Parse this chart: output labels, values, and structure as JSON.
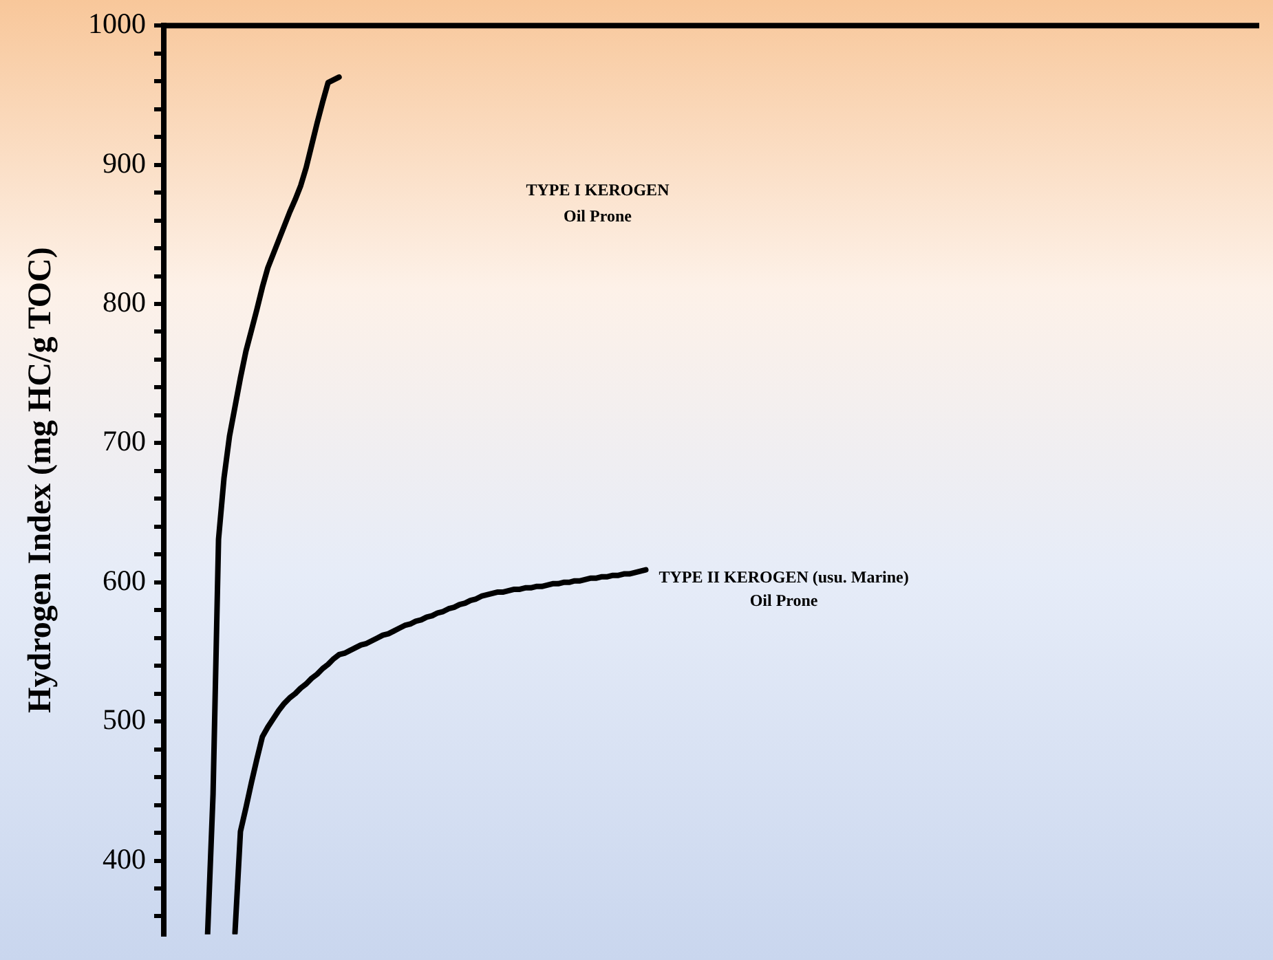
{
  "chart_data": {
    "type": "line",
    "ylabel": "Hydrogen Index (mg HC/g TOC)",
    "categories": [
      null,
      null,
      null,
      null,
      null,
      null,
      null,
      null,
      null,
      null,
      null,
      null,
      null,
      null,
      null,
      null,
      null,
      null,
      null,
      null,
      null,
      null,
      null,
      null,
      null,
      null,
      null,
      null,
      null,
      null,
      null,
      null,
      null,
      null,
      null,
      null,
      null,
      null,
      null,
      null,
      null,
      null,
      null,
      null,
      null,
      null,
      null,
      null,
      null,
      null,
      null,
      null,
      null,
      null,
      null,
      null,
      null,
      null,
      null,
      null,
      null,
      null,
      null,
      null,
      null,
      null,
      null,
      null,
      null,
      null,
      null,
      null,
      null,
      null,
      null,
      null,
      null,
      null,
      null,
      null,
      null,
      null,
      null,
      null,
      null,
      null,
      null,
      null,
      null,
      null,
      null,
      null,
      null,
      null,
      null,
      null,
      null,
      null,
      null,
      null,
      null,
      null,
      null,
      null,
      null,
      null,
      null,
      null,
      null,
      null,
      null,
      null,
      null,
      null,
      null,
      null,
      null,
      null,
      null,
      null,
      null,
      null,
      null,
      null,
      null,
      null,
      null,
      null,
      null,
      null,
      null,
      null,
      null,
      null,
      null,
      null,
      null,
      null,
      null,
      null,
      null,
      null,
      null,
      null,
      null,
      null,
      null,
      null,
      null,
      null,
      null,
      null,
      null,
      null,
      null,
      null,
      null,
      null,
      null,
      null,
      null,
      null,
      null,
      null,
      null,
      null,
      null,
      null,
      null,
      null,
      null,
      null,
      null,
      null,
      null,
      null,
      null,
      null,
      null,
      null,
      null,
      null,
      null,
      null,
      null,
      null,
      null,
      null,
      null,
      null,
      null,
      null,
      null,
      null,
      null,
      null,
      null,
      null,
      null,
      null,
      null
    ],
    "ylim": [
      347,
      1000
    ],
    "yticks": [
      {
        "value": 360,
        "label": null
      },
      {
        "value": 380,
        "label": null
      },
      400,
      {
        "value": 420,
        "label": null
      },
      {
        "value": 440,
        "label": null
      },
      {
        "value": 460,
        "label": null
      },
      {
        "value": 480,
        "label": null
      },
      500,
      {
        "value": 520,
        "label": null
      },
      {
        "value": 540,
        "label": null
      },
      {
        "value": 560,
        "label": null
      },
      {
        "value": 580,
        "label": null
      },
      600,
      {
        "value": 620,
        "label": null
      },
      {
        "value": 640,
        "label": null
      },
      {
        "value": 660,
        "label": null
      },
      {
        "value": 680,
        "label": null
      },
      700,
      {
        "value": 720,
        "label": null
      },
      {
        "value": 740,
        "label": null
      },
      {
        "value": 760,
        "label": null
      },
      {
        "value": 780,
        "label": null
      },
      800,
      {
        "value": 820,
        "label": null
      },
      {
        "value": 840,
        "label": null
      },
      {
        "value": 860,
        "label": null
      },
      {
        "value": 880,
        "label": null
      },
      900,
      {
        "value": 920,
        "label": null
      },
      {
        "value": 940,
        "label": null
      },
      {
        "value": 960,
        "label": null
      },
      {
        "value": 980,
        "label": null
      },
      1000
    ],
    "tick_labels": "y",
    "grid": false,
    "legend": false,
    "marker": "none",
    "line_style": "solid",
    "series": [
      {
        "color": "#000000",
        "values": [
          null,
          null,
          null,
          null,
          null,
          null,
          null,
          null,
          347,
          448,
          631,
          675,
          705,
          726,
          747,
          766,
          781,
          796,
          812,
          826,
          836,
          846,
          856,
          866,
          875,
          885,
          898,
          914,
          930,
          945,
          959,
          961,
          963,
          null,
          null,
          null,
          null,
          null,
          null,
          null,
          null,
          null,
          null,
          null,
          null,
          null,
          null,
          null,
          null,
          null,
          null,
          null,
          null,
          null,
          null,
          null,
          null,
          null,
          null,
          null,
          null,
          null,
          null,
          null,
          null,
          null,
          null,
          null,
          null,
          null,
          null,
          null,
          null,
          null,
          null,
          null,
          null,
          null,
          null,
          null,
          null,
          null,
          null,
          null,
          null,
          null,
          null,
          null,
          null,
          null,
          null,
          null,
          null,
          null,
          null,
          null,
          null,
          null,
          null,
          null,
          null,
          null,
          null,
          null,
          null,
          null,
          null,
          null,
          null,
          null,
          null,
          null,
          null,
          null,
          null,
          null,
          null,
          null,
          null,
          null,
          null,
          null,
          null,
          null,
          null,
          null,
          null,
          null,
          null,
          null,
          null,
          null,
          null,
          null,
          null,
          null,
          null,
          null,
          null,
          null,
          null,
          null,
          null,
          null,
          null,
          null,
          null,
          null,
          null,
          null,
          null,
          null,
          null,
          null,
          null,
          null,
          null,
          null,
          null,
          null,
          null,
          null,
          null,
          null,
          null,
          null,
          null,
          null,
          null,
          null,
          null,
          null,
          null,
          null,
          null,
          null,
          null,
          null,
          null,
          null,
          null,
          null,
          null,
          null,
          null,
          null,
          null,
          null,
          null,
          null,
          null,
          null,
          null,
          null,
          null,
          null,
          null,
          null,
          null,
          null,
          null
        ]
      },
      {
        "color": "#000000",
        "values": [
          null,
          null,
          null,
          null,
          null,
          null,
          null,
          null,
          null,
          null,
          null,
          null,
          null,
          348,
          421,
          438,
          456,
          473,
          489,
          496,
          502,
          508,
          513,
          517,
          520,
          524,
          527,
          531,
          534,
          538,
          541,
          545,
          548,
          549,
          551,
          553,
          555,
          556,
          558,
          560,
          562,
          563,
          565,
          567,
          569,
          570,
          572,
          573,
          575,
          576,
          578,
          579,
          581,
          582,
          584,
          585,
          587,
          588,
          590,
          591,
          592,
          593,
          593,
          594,
          595,
          595,
          596,
          596,
          597,
          597,
          598,
          599,
          599,
          600,
          600,
          601,
          601,
          602,
          603,
          603,
          604,
          604,
          605,
          605,
          606,
          606,
          607,
          608,
          609,
          null,
          null,
          null,
          null,
          null,
          null,
          null,
          null,
          null,
          null,
          null,
          null,
          null,
          null,
          null,
          null,
          null,
          null,
          null,
          null,
          null,
          null,
          null,
          null,
          null,
          null,
          null,
          null,
          null,
          null,
          null,
          null,
          null,
          null,
          null,
          null,
          null,
          null,
          null,
          null,
          null,
          null,
          null,
          null,
          null,
          null,
          null,
          null,
          null,
          null,
          null,
          null,
          null,
          null,
          null,
          null,
          null,
          null,
          null,
          null,
          null,
          null,
          null,
          null,
          null,
          null,
          null,
          null,
          null,
          null,
          null,
          null,
          null,
          null,
          null,
          null,
          null,
          null,
          null,
          null,
          null,
          null,
          null,
          null,
          null,
          null,
          null,
          null,
          null,
          null,
          null,
          null,
          null,
          null,
          null,
          null,
          null,
          null,
          null,
          null,
          null,
          null,
          null,
          null,
          null,
          null,
          null,
          null,
          null,
          null,
          null,
          null
        ]
      }
    ],
    "annotations": [
      "TYPE I KEROGEN",
      "Oil Prone",
      "TYPE II KEROGEN (usu. Marine)",
      "Oil Prone"
    ]
  }
}
